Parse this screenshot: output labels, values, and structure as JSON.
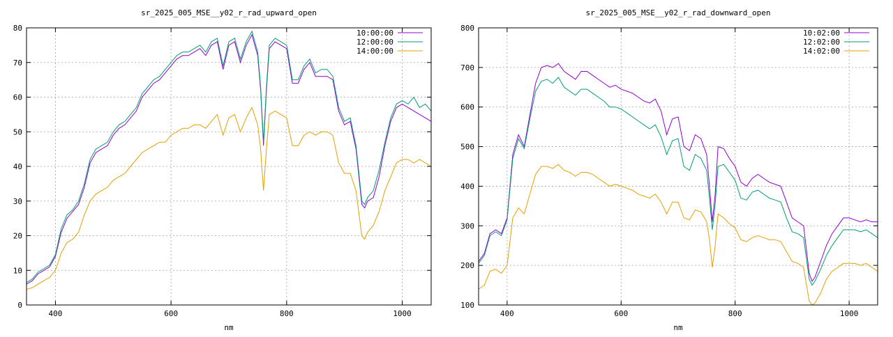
{
  "chart_data": [
    {
      "type": "line",
      "title": "sr_2025_005_MSE__y02_r_rad_upward_open",
      "xlabel": "nm",
      "ylabel": "",
      "xlim": [
        350,
        1050
      ],
      "ylim": [
        0,
        80
      ],
      "xticks": [
        "400",
        "600",
        "800",
        "1000"
      ],
      "yticks": [
        "0",
        "10",
        "20",
        "30",
        "40",
        "50",
        "60",
        "70",
        "80"
      ],
      "grid": true,
      "legend_position": "top-right",
      "series": [
        {
          "name": "10:00:00",
          "color": "#9400d3",
          "x": [
            350,
            360,
            370,
            380,
            390,
            400,
            410,
            420,
            430,
            440,
            450,
            460,
            470,
            480,
            490,
            500,
            510,
            520,
            530,
            540,
            550,
            560,
            570,
            580,
            590,
            600,
            610,
            620,
            630,
            640,
            650,
            660,
            670,
            680,
            690,
            700,
            710,
            720,
            730,
            740,
            750,
            755,
            760,
            765,
            770,
            780,
            790,
            800,
            810,
            820,
            830,
            840,
            850,
            860,
            870,
            880,
            890,
            900,
            910,
            920,
            930,
            935,
            940,
            950,
            960,
            970,
            980,
            990,
            1000,
            1010,
            1020,
            1030,
            1040,
            1050
          ],
          "y": [
            6,
            7,
            9,
            10,
            11,
            14,
            21,
            25,
            27,
            29,
            34,
            41,
            44,
            45,
            46,
            49,
            51,
            52,
            54,
            56,
            60,
            62,
            64,
            65,
            67,
            69,
            71,
            72,
            72,
            73,
            74,
            72,
            75,
            76,
            68,
            75,
            76,
            70,
            75,
            78,
            72,
            62,
            46,
            62,
            74,
            76,
            75,
            74,
            64,
            64,
            68,
            70,
            66,
            66,
            66,
            65,
            56,
            52,
            53,
            45,
            29,
            28,
            30,
            31,
            37,
            46,
            53,
            57,
            58,
            57,
            56,
            55,
            54,
            53
          ]
        },
        {
          "name": "12:00:00",
          "color": "#009e73",
          "x": [
            350,
            360,
            370,
            380,
            390,
            400,
            410,
            420,
            430,
            440,
            450,
            460,
            470,
            480,
            490,
            500,
            510,
            520,
            530,
            540,
            550,
            560,
            570,
            580,
            590,
            600,
            610,
            620,
            630,
            640,
            650,
            660,
            670,
            680,
            690,
            700,
            710,
            720,
            730,
            740,
            750,
            755,
            760,
            765,
            770,
            780,
            790,
            800,
            810,
            820,
            830,
            840,
            850,
            860,
            870,
            880,
            890,
            900,
            910,
            920,
            930,
            935,
            940,
            950,
            960,
            970,
            980,
            990,
            1000,
            1010,
            1020,
            1030,
            1040,
            1050
          ],
          "y": [
            6.5,
            7.5,
            9.5,
            10.5,
            11.5,
            14.5,
            22,
            26,
            27.5,
            30,
            35,
            42,
            45,
            46,
            47,
            50,
            52,
            53,
            55,
            57,
            61,
            63,
            65,
            66,
            68,
            70,
            72,
            73,
            73,
            74,
            75,
            73,
            76,
            77,
            69,
            76,
            77,
            71,
            76,
            79,
            73,
            63,
            47,
            63,
            75,
            77,
            76,
            75,
            65,
            65,
            69,
            71,
            67,
            68,
            68,
            66,
            57,
            53,
            54,
            46,
            30,
            29,
            31,
            33,
            39,
            47,
            54,
            58,
            59,
            58,
            60,
            57,
            58,
            56
          ]
        },
        {
          "name": "14:00:00",
          "color": "#e69f00",
          "x": [
            350,
            360,
            370,
            380,
            390,
            400,
            410,
            420,
            430,
            440,
            450,
            460,
            470,
            480,
            490,
            500,
            510,
            520,
            530,
            540,
            550,
            560,
            570,
            580,
            590,
            600,
            610,
            620,
            630,
            640,
            650,
            660,
            670,
            680,
            690,
            700,
            710,
            720,
            730,
            740,
            750,
            755,
            760,
            765,
            770,
            780,
            790,
            800,
            810,
            820,
            830,
            840,
            850,
            860,
            870,
            880,
            890,
            900,
            910,
            920,
            930,
            935,
            940,
            950,
            960,
            970,
            980,
            990,
            1000,
            1010,
            1020,
            1030,
            1040,
            1050
          ],
          "y": [
            4.5,
            5,
            6,
            7,
            8,
            10,
            15,
            18,
            19,
            21,
            26,
            30,
            32,
            33,
            34,
            36,
            37,
            38,
            40,
            42,
            44,
            45,
            46,
            47,
            47,
            49,
            50,
            51,
            51,
            52,
            52,
            51,
            53,
            55,
            49,
            54,
            55,
            50,
            54,
            57,
            52,
            45,
            33,
            45,
            55,
            56,
            55,
            54,
            46,
            46,
            49,
            50,
            49,
            50,
            50,
            49,
            41,
            38,
            38,
            33,
            20,
            19,
            21,
            23,
            27,
            33,
            37,
            41,
            42,
            42,
            41,
            42,
            41,
            40
          ]
        }
      ]
    },
    {
      "type": "line",
      "title": "sr_2025_005_MSE__y02_r_rad_downward_open",
      "xlabel": "nm",
      "ylabel": "",
      "xlim": [
        350,
        1050
      ],
      "ylim": [
        100,
        800
      ],
      "xticks": [
        "400",
        "600",
        "800",
        "1000"
      ],
      "yticks": [
        "100",
        "200",
        "300",
        "400",
        "500",
        "600",
        "700",
        "800"
      ],
      "grid": true,
      "legend_position": "top-right",
      "series": [
        {
          "name": "10:02:00",
          "color": "#9400d3",
          "x": [
            350,
            360,
            370,
            380,
            390,
            400,
            410,
            420,
            430,
            440,
            450,
            460,
            470,
            480,
            490,
            500,
            510,
            520,
            530,
            540,
            550,
            560,
            570,
            580,
            590,
            600,
            610,
            620,
            630,
            640,
            650,
            660,
            670,
            680,
            690,
            700,
            710,
            720,
            730,
            740,
            750,
            755,
            760,
            765,
            770,
            780,
            790,
            800,
            810,
            820,
            830,
            840,
            850,
            860,
            870,
            880,
            890,
            900,
            910,
            920,
            930,
            935,
            940,
            950,
            960,
            970,
            980,
            990,
            1000,
            1010,
            1020,
            1030,
            1040,
            1050
          ],
          "y": [
            210,
            230,
            280,
            290,
            280,
            320,
            480,
            530,
            500,
            580,
            660,
            700,
            705,
            700,
            710,
            690,
            680,
            670,
            690,
            690,
            680,
            670,
            660,
            650,
            655,
            645,
            640,
            635,
            625,
            615,
            610,
            620,
            590,
            530,
            570,
            575,
            500,
            490,
            530,
            520,
            480,
            400,
            310,
            380,
            500,
            495,
            470,
            450,
            410,
            400,
            420,
            430,
            420,
            410,
            405,
            400,
            360,
            320,
            310,
            300,
            180,
            160,
            170,
            210,
            250,
            280,
            300,
            320,
            320,
            315,
            310,
            315,
            310,
            310
          ]
        },
        {
          "name": "12:02:00",
          "color": "#009e73",
          "x": [
            350,
            360,
            370,
            380,
            390,
            400,
            410,
            420,
            430,
            440,
            450,
            460,
            470,
            480,
            490,
            500,
            510,
            520,
            530,
            540,
            550,
            560,
            570,
            580,
            590,
            600,
            610,
            620,
            630,
            640,
            650,
            660,
            670,
            680,
            690,
            700,
            710,
            720,
            730,
            740,
            750,
            755,
            760,
            765,
            770,
            780,
            790,
            800,
            810,
            820,
            830,
            840,
            850,
            860,
            870,
            880,
            890,
            900,
            910,
            920,
            930,
            935,
            940,
            950,
            960,
            970,
            980,
            990,
            1000,
            1010,
            1020,
            1030,
            1040,
            1050
          ],
          "y": [
            205,
            225,
            275,
            285,
            275,
            315,
            470,
            520,
            495,
            570,
            640,
            665,
            670,
            660,
            675,
            650,
            640,
            630,
            645,
            645,
            635,
            625,
            615,
            600,
            600,
            595,
            585,
            575,
            565,
            555,
            545,
            555,
            525,
            480,
            515,
            520,
            450,
            440,
            480,
            470,
            440,
            370,
            290,
            355,
            450,
            455,
            435,
            415,
            370,
            365,
            385,
            390,
            380,
            370,
            365,
            360,
            320,
            285,
            280,
            270,
            165,
            150,
            160,
            190,
            225,
            250,
            270,
            290,
            290,
            290,
            285,
            290,
            280,
            270
          ]
        },
        {
          "name": "14:02:00",
          "color": "#e69f00",
          "x": [
            350,
            360,
            370,
            380,
            390,
            400,
            410,
            420,
            430,
            440,
            450,
            460,
            470,
            480,
            490,
            500,
            510,
            520,
            530,
            540,
            550,
            560,
            570,
            580,
            590,
            600,
            610,
            620,
            630,
            640,
            650,
            660,
            670,
            680,
            690,
            700,
            710,
            720,
            730,
            740,
            750,
            755,
            760,
            765,
            770,
            780,
            790,
            800,
            810,
            820,
            830,
            840,
            850,
            860,
            870,
            880,
            890,
            900,
            910,
            920,
            930,
            935,
            940,
            950,
            960,
            970,
            980,
            990,
            1000,
            1010,
            1020,
            1030,
            1040,
            1050
          ],
          "y": [
            140,
            150,
            185,
            190,
            180,
            200,
            320,
            345,
            330,
            380,
            430,
            450,
            450,
            445,
            455,
            440,
            435,
            425,
            435,
            435,
            430,
            420,
            410,
            400,
            405,
            400,
            395,
            390,
            380,
            375,
            370,
            380,
            360,
            330,
            360,
            360,
            320,
            315,
            340,
            335,
            310,
            265,
            195,
            250,
            330,
            320,
            305,
            295,
            265,
            260,
            270,
            275,
            270,
            265,
            265,
            260,
            235,
            210,
            205,
            195,
            110,
            100,
            105,
            130,
            165,
            185,
            195,
            205,
            205,
            205,
            200,
            205,
            195,
            185
          ]
        }
      ]
    }
  ]
}
